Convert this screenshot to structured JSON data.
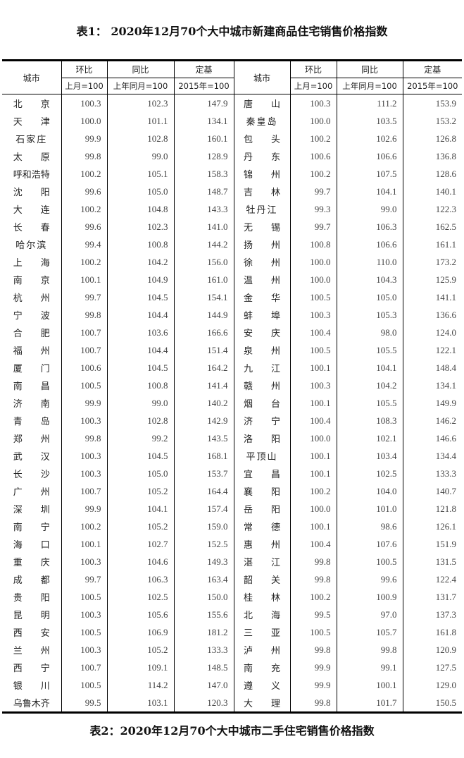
{
  "title1": "表1： 2020年12月70个大中城市新建商品住宅销售价格指数",
  "title2": "表2：2020年12月70个大中城市二手住宅销售价格指数",
  "headers": {
    "city": "城市",
    "mom": "环比",
    "mom_base": "上月=100",
    "yoy": "同比",
    "yoy_base": "上年同月=100",
    "fixed": "定基",
    "fixed_base": "2015年=100"
  },
  "left": [
    [
      "北京",
      "100.3",
      "102.3",
      "147.9"
    ],
    [
      "天津",
      "100.0",
      "101.1",
      "134.1"
    ],
    [
      "石家庄",
      "99.9",
      "102.8",
      "160.1"
    ],
    [
      "太原",
      "99.8",
      "99.0",
      "128.9"
    ],
    [
      "呼和浩特",
      "100.2",
      "105.1",
      "158.3"
    ],
    [
      "沈阳",
      "99.6",
      "105.0",
      "148.7"
    ],
    [
      "大连",
      "100.2",
      "104.8",
      "143.3"
    ],
    [
      "长春",
      "99.6",
      "102.3",
      "141.0"
    ],
    [
      "哈尔滨",
      "99.4",
      "100.8",
      "144.2"
    ],
    [
      "上海",
      "100.2",
      "104.2",
      "156.0"
    ],
    [
      "南京",
      "100.1",
      "104.9",
      "161.0"
    ],
    [
      "杭州",
      "99.7",
      "104.5",
      "154.1"
    ],
    [
      "宁波",
      "99.8",
      "104.4",
      "144.9"
    ],
    [
      "合肥",
      "100.7",
      "103.6",
      "166.6"
    ],
    [
      "福州",
      "100.7",
      "104.4",
      "151.4"
    ],
    [
      "厦门",
      "100.6",
      "104.5",
      "164.2"
    ],
    [
      "南昌",
      "100.5",
      "100.8",
      "141.4"
    ],
    [
      "济南",
      "99.9",
      "99.0",
      "140.2"
    ],
    [
      "青岛",
      "100.3",
      "102.8",
      "142.9"
    ],
    [
      "郑州",
      "99.8",
      "99.2",
      "143.5"
    ],
    [
      "武汉",
      "100.3",
      "104.5",
      "168.1"
    ],
    [
      "长沙",
      "100.3",
      "105.0",
      "153.7"
    ],
    [
      "广州",
      "100.7",
      "105.2",
      "164.4"
    ],
    [
      "深圳",
      "99.9",
      "104.1",
      "157.4"
    ],
    [
      "南宁",
      "100.2",
      "105.2",
      "159.0"
    ],
    [
      "海口",
      "100.1",
      "102.7",
      "152.5"
    ],
    [
      "重庆",
      "100.3",
      "104.6",
      "149.3"
    ],
    [
      "成都",
      "99.7",
      "106.3",
      "163.4"
    ],
    [
      "贵阳",
      "100.5",
      "102.5",
      "150.0"
    ],
    [
      "昆明",
      "100.3",
      "105.6",
      "155.6"
    ],
    [
      "西安",
      "100.5",
      "106.9",
      "181.2"
    ],
    [
      "兰州",
      "100.3",
      "105.2",
      "133.3"
    ],
    [
      "西宁",
      "100.7",
      "109.1",
      "148.5"
    ],
    [
      "银川",
      "100.5",
      "114.2",
      "147.0"
    ],
    [
      "乌鲁木齐",
      "99.5",
      "103.1",
      "120.3"
    ]
  ],
  "right": [
    [
      "唐山",
      "100.3",
      "111.2",
      "153.9"
    ],
    [
      "秦皇岛",
      "100.0",
      "103.5",
      "153.2"
    ],
    [
      "包头",
      "100.2",
      "102.6",
      "126.8"
    ],
    [
      "丹东",
      "100.6",
      "106.6",
      "136.8"
    ],
    [
      "锦州",
      "100.2",
      "107.5",
      "128.6"
    ],
    [
      "吉林",
      "99.7",
      "104.1",
      "140.1"
    ],
    [
      "牡丹江",
      "99.3",
      "99.0",
      "122.3"
    ],
    [
      "无锡",
      "99.7",
      "106.3",
      "162.5"
    ],
    [
      "扬州",
      "100.8",
      "106.6",
      "161.1"
    ],
    [
      "徐州",
      "100.0",
      "110.0",
      "173.2"
    ],
    [
      "温州",
      "100.0",
      "104.3",
      "125.9"
    ],
    [
      "金华",
      "100.5",
      "105.0",
      "141.1"
    ],
    [
      "蚌埠",
      "100.3",
      "105.3",
      "136.6"
    ],
    [
      "安庆",
      "100.4",
      "98.0",
      "124.0"
    ],
    [
      "泉州",
      "100.5",
      "105.5",
      "122.1"
    ],
    [
      "九江",
      "100.1",
      "104.1",
      "148.4"
    ],
    [
      "赣州",
      "100.3",
      "104.2",
      "134.1"
    ],
    [
      "烟台",
      "100.1",
      "105.5",
      "149.9"
    ],
    [
      "济宁",
      "100.4",
      "108.3",
      "146.2"
    ],
    [
      "洛阳",
      "100.0",
      "102.1",
      "146.6"
    ],
    [
      "平顶山",
      "100.1",
      "103.4",
      "134.4"
    ],
    [
      "宜昌",
      "100.1",
      "102.5",
      "133.3"
    ],
    [
      "襄阳",
      "100.2",
      "104.0",
      "140.7"
    ],
    [
      "岳阳",
      "100.0",
      "101.0",
      "121.8"
    ],
    [
      "常德",
      "100.1",
      "98.6",
      "126.1"
    ],
    [
      "惠州",
      "100.4",
      "107.6",
      "151.9"
    ],
    [
      "湛江",
      "99.8",
      "100.5",
      "131.5"
    ],
    [
      "韶关",
      "99.8",
      "99.6",
      "122.4"
    ],
    [
      "桂林",
      "100.2",
      "100.9",
      "131.7"
    ],
    [
      "北海",
      "99.5",
      "97.0",
      "137.3"
    ],
    [
      "三亚",
      "100.5",
      "105.7",
      "161.8"
    ],
    [
      "泸州",
      "99.8",
      "99.8",
      "120.9"
    ],
    [
      "南充",
      "99.9",
      "99.1",
      "127.5"
    ],
    [
      "遵义",
      "99.9",
      "100.1",
      "129.0"
    ],
    [
      "大理",
      "99.8",
      "101.7",
      "150.5"
    ]
  ]
}
